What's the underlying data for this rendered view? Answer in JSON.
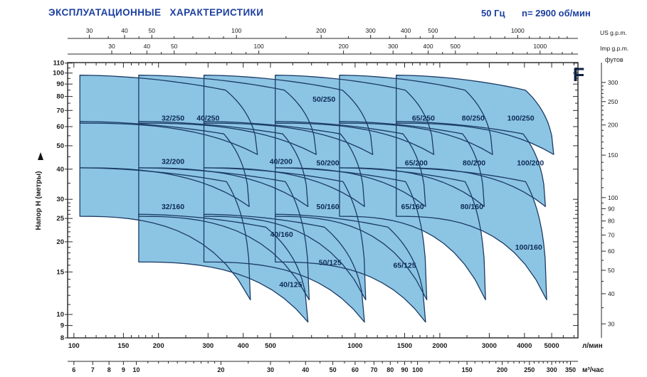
{
  "header": {
    "title": "ЭКСПЛУАТАЦИОННЫЕ ХАРАКТЕРИСТИКИ",
    "frequency": "50 Гц",
    "speed": "n= 2900 об/мин"
  },
  "chart_data": {
    "type": "area",
    "title": "ЭКСПЛУАТАЦИОННЫЕ ХАРАКТЕРИСТИКИ",
    "series_letter": "F",
    "q_range_lmin": [
      95,
      6200
    ],
    "h_range_m": [
      8,
      110.5
    ],
    "axes": {
      "us_gpm": {
        "label": "US g.p.m.",
        "lmin_per_unit": 3.7854,
        "majors": [
          30,
          40,
          50,
          100,
          200,
          300,
          400,
          500,
          1000
        ],
        "minors": [
          35,
          45,
          60,
          70,
          80,
          90,
          150,
          250,
          350,
          450,
          600,
          700,
          800,
          900,
          1100,
          1200,
          1300,
          1400,
          1500
        ]
      },
      "imp_gpm": {
        "label": "Imp g.p.m.",
        "lmin_per_unit": 4.5461,
        "majors": [
          30,
          40,
          50,
          100,
          200,
          300,
          400,
          500,
          1000
        ],
        "minors": [
          35,
          45,
          60,
          70,
          80,
          90,
          150,
          250,
          350,
          450,
          600,
          700,
          800,
          900,
          1100,
          1200,
          1300
        ]
      },
      "lmin": {
        "label": "л/мин",
        "lmin_per_unit": 1,
        "majors": [
          100,
          150,
          200,
          300,
          400,
          500,
          1000,
          1500,
          2000,
          3000,
          4000,
          5000
        ],
        "minors": [
          110,
          120,
          130,
          140,
          160,
          170,
          180,
          190,
          250,
          350,
          450,
          600,
          700,
          800,
          900,
          1100,
          1200,
          1300,
          1400,
          1600,
          1700,
          1800,
          1900,
          2500,
          3500,
          4500,
          5500,
          6000
        ]
      },
      "m3h": {
        "label": "м³/час",
        "lmin_per_unit": 16.6667,
        "majors": [
          6,
          7,
          8,
          9,
          10,
          20,
          30,
          40,
          50,
          60,
          70,
          80,
          90,
          100,
          150,
          200,
          250,
          300,
          350
        ],
        "minors": [
          11,
          12,
          13,
          14,
          15,
          16,
          17,
          18,
          19,
          25,
          35,
          45,
          55,
          65,
          75,
          85,
          95,
          110,
          120,
          130,
          140,
          160,
          170,
          180,
          190,
          210,
          220,
          230,
          240,
          260,
          270,
          280,
          290,
          310,
          320,
          330,
          340
        ]
      },
      "head_m": {
        "label": "Напор H (метры)",
        "majors": [
          8,
          9,
          10,
          15,
          20,
          25,
          30,
          40,
          50,
          60,
          70,
          80,
          90,
          100,
          110
        ],
        "minors": [
          11,
          12,
          13,
          14,
          16,
          17,
          18,
          19,
          21,
          22,
          23,
          24,
          26,
          27,
          28,
          29,
          35,
          45,
          55,
          65,
          75,
          85,
          95,
          105
        ]
      },
      "feet": {
        "label": "футов",
        "m_per_unit": 0.3048,
        "majors": [
          30,
          40,
          50,
          60,
          70,
          80,
          90,
          100,
          150,
          200,
          250,
          300
        ],
        "minors": [
          35,
          45,
          55,
          65,
          75,
          85,
          95,
          110,
          120,
          130,
          140,
          160,
          170,
          180,
          190,
          210,
          220,
          230,
          240,
          260,
          270,
          280,
          290
        ]
      }
    },
    "impellers": {
      "250": {
        "h_top_l": 98,
        "h_top_r": 85,
        "h_bot": 62,
        "h_tail": 46,
        "knee_exp": 0.82,
        "tail_factor": 1.07
      },
      "200": {
        "h_top_l": 63,
        "h_top_r": 56,
        "h_bot": 40.5,
        "h_tail": 28,
        "knee_exp": 0.85,
        "tail_factor": 1.0
      },
      "160": {
        "h_top_l": 40.5,
        "h_top_r": 35.5,
        "h_bot": 25.5,
        "h_tail": 11.5,
        "knee_exp": 0.86,
        "tail_factor": 1.01
      },
      "125": {
        "h_top_l": 26,
        "h_top_r": 23,
        "h_bot": 16.5,
        "h_tail": 9.3,
        "knee_exp": 0.75,
        "tail_factor": 1.0
      }
    },
    "sizes": {
      "32": {
        "q_min": 105,
        "q_tail": 420
      },
      "40": {
        "q_min": 170,
        "q_tail": 680
      },
      "50": {
        "q_min": 290,
        "q_tail": 1080
      },
      "65": {
        "q_min": 520,
        "q_tail": 1780
      },
      "80": {
        "q_min": 880,
        "q_tail": 2880
      },
      "100": {
        "q_min": 1400,
        "q_tail": 4750
      }
    },
    "regions": [
      {
        "name": "32/250",
        "size": "32",
        "impeller": "250",
        "label_q": 225,
        "label_h": 65
      },
      {
        "name": "40/250",
        "size": "40",
        "impeller": "250",
        "label_q": 300,
        "label_h": 65
      },
      {
        "name": "50/250",
        "size": "50",
        "impeller": "250",
        "label_q": 775,
        "label_h": 78
      },
      {
        "name": "65/250",
        "size": "65",
        "impeller": "250",
        "label_q": 1750,
        "label_h": 65
      },
      {
        "name": "80/250",
        "size": "80",
        "impeller": "250",
        "label_q": 2630,
        "label_h": 65
      },
      {
        "name": "100/250",
        "size": "100",
        "impeller": "250",
        "label_q": 3880,
        "label_h": 65
      },
      {
        "name": "32/200",
        "size": "32",
        "impeller": "200",
        "label_q": 225,
        "label_h": 43
      },
      {
        "name": "40/200",
        "size": "40",
        "impeller": "200",
        "label_q": 545,
        "label_h": 43
      },
      {
        "name": "50/200",
        "size": "50",
        "impeller": "200",
        "label_q": 800,
        "label_h": 42.5
      },
      {
        "name": "65/200",
        "size": "65",
        "impeller": "200",
        "label_q": 1650,
        "label_h": 42.5
      },
      {
        "name": "80/200",
        "size": "80",
        "impeller": "200",
        "label_q": 2650,
        "label_h": 42.5
      },
      {
        "name": "100/200",
        "size": "100",
        "impeller": "200",
        "label_q": 4200,
        "label_h": 42.5
      },
      {
        "name": "32/160",
        "size": "32",
        "impeller": "160",
        "label_q": 225,
        "label_h": 28
      },
      {
        "name": "40/160",
        "size": "40",
        "impeller": "160",
        "label_q": 548,
        "label_h": 21.5
      },
      {
        "name": "50/160",
        "size": "50",
        "impeller": "160",
        "label_q": 800,
        "label_h": 28
      },
      {
        "name": "65/160",
        "size": "65",
        "impeller": "160",
        "label_q": 1600,
        "label_h": 28
      },
      {
        "name": "80/160",
        "size": "80",
        "impeller": "160",
        "label_q": 2600,
        "label_h": 28
      },
      {
        "name": "100/160",
        "size": "100",
        "impeller": "160",
        "label_q": 4140,
        "label_h": 19
      },
      {
        "name": "40/125",
        "size": "40",
        "impeller": "125",
        "label_q": 590,
        "label_h": 13.3
      },
      {
        "name": "50/125",
        "size": "50",
        "impeller": "125",
        "label_q": 815,
        "label_h": 16.4
      },
      {
        "name": "65/125",
        "size": "65",
        "impeller": "125",
        "label_q": 1500,
        "label_h": 16
      }
    ],
    "colors": {
      "region_fill": "#8CC5E3",
      "region_stroke": "#1b3b66",
      "region_label": "#0d2a56",
      "title_blue": "#1c3fa0",
      "axis": "#2a2a2a",
      "letter": "#0e2140"
    }
  }
}
